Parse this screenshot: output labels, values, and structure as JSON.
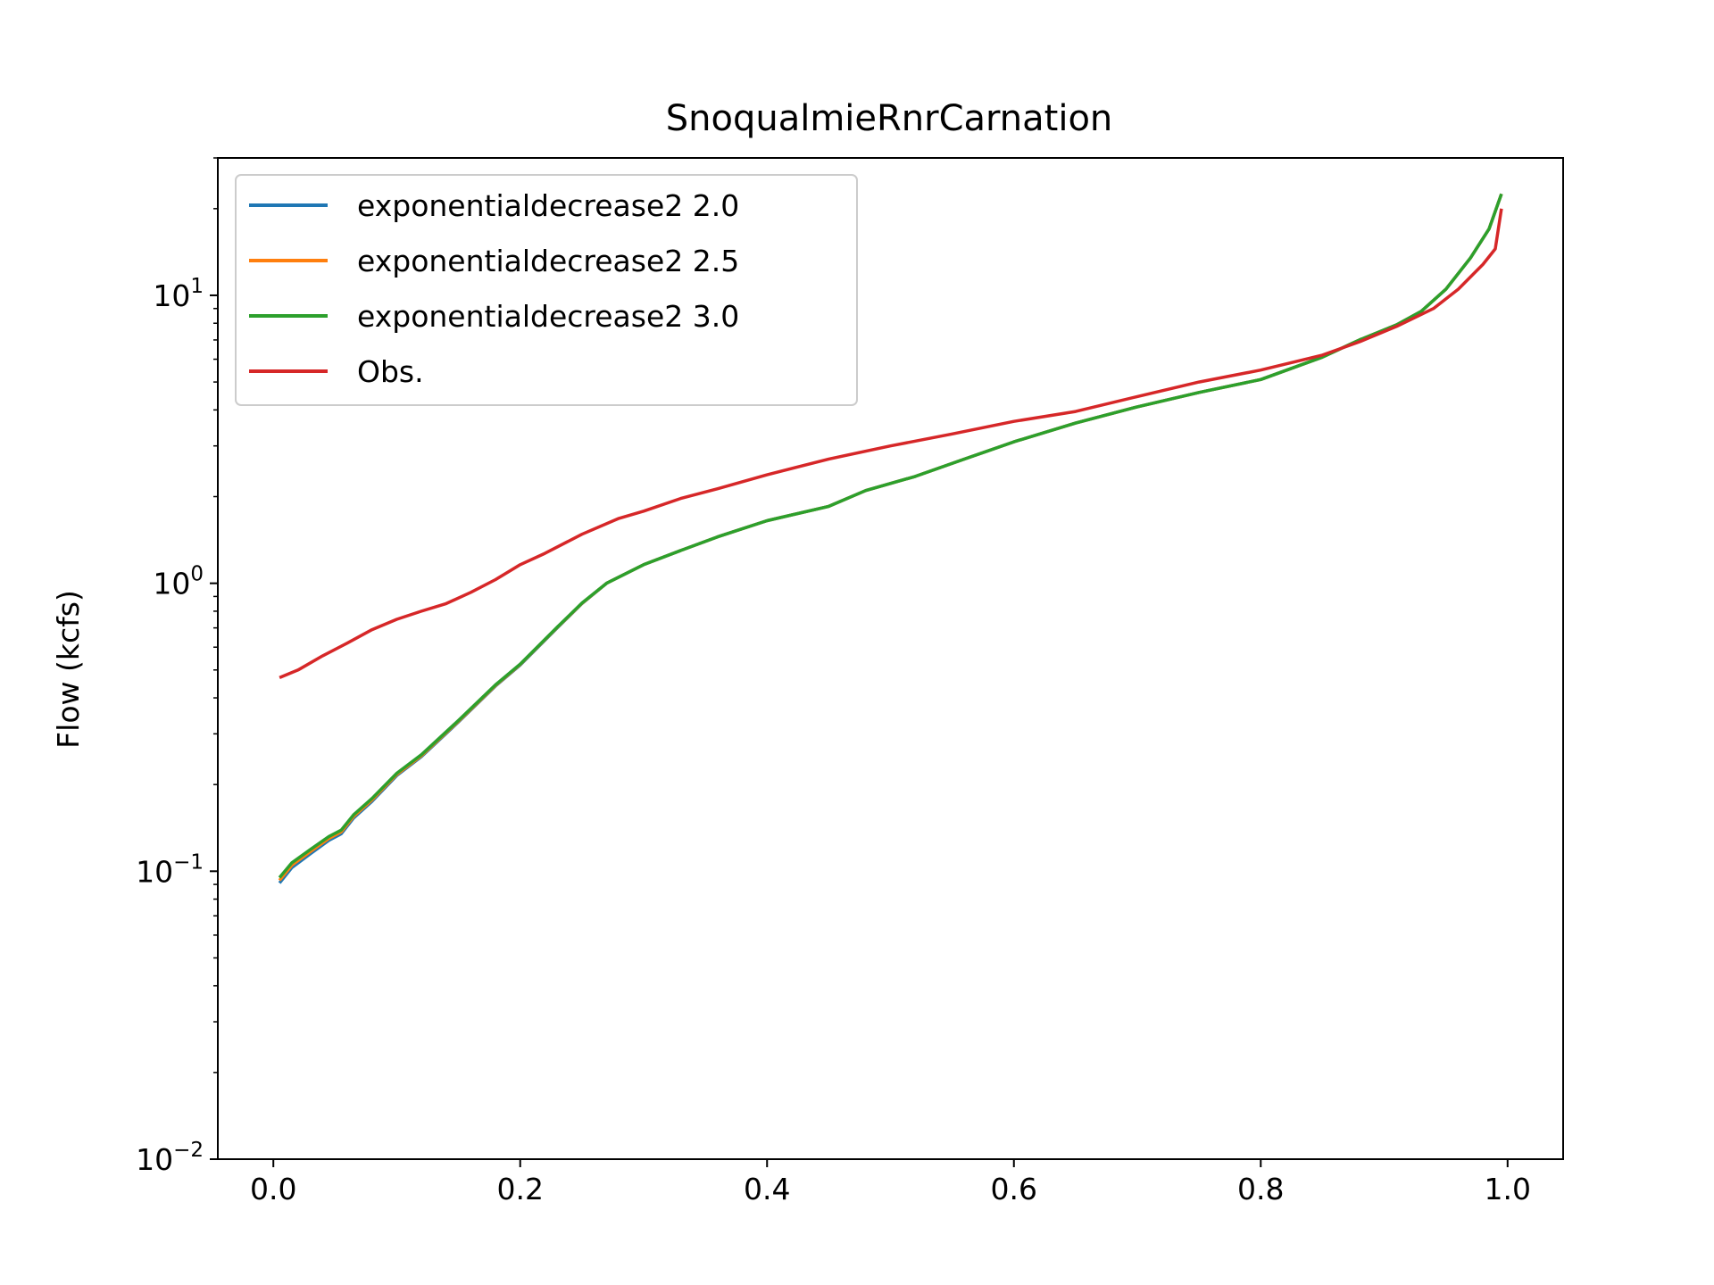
{
  "chart_data": {
    "type": "line",
    "title": "SnoqualmieRnrCarnation",
    "xlabel": "",
    "ylabel": "Flow (kcfs)",
    "xlim": [
      -0.045,
      1.045
    ],
    "ylim": [
      0.01,
      30
    ],
    "yscale": "log",
    "grid": false,
    "legend_position": "top-left",
    "x_ticks": [
      {
        "value": 0.0,
        "label": "0.0"
      },
      {
        "value": 0.2,
        "label": "0.2"
      },
      {
        "value": 0.4,
        "label": "0.4"
      },
      {
        "value": 0.6,
        "label": "0.6"
      },
      {
        "value": 0.8,
        "label": "0.8"
      },
      {
        "value": 1.0,
        "label": "1.0"
      }
    ],
    "y_ticks": [
      {
        "value": 0.01,
        "base": "10",
        "exp": "−2"
      },
      {
        "value": 0.1,
        "base": "10",
        "exp": "−1"
      },
      {
        "value": 1,
        "base": "10",
        "exp": "0"
      },
      {
        "value": 10,
        "base": "10",
        "exp": "1"
      }
    ],
    "series": [
      {
        "name": "exponentialdecrease2 2.0",
        "color": "#1f77b4",
        "x": [
          0.005,
          0.015,
          0.03,
          0.045,
          0.055,
          0.065,
          0.08,
          0.1,
          0.12,
          0.15,
          0.18,
          0.2,
          0.23,
          0.25,
          0.27,
          0.3,
          0.33,
          0.36,
          0.4,
          0.45,
          0.48,
          0.52,
          0.56,
          0.6,
          0.65,
          0.7,
          0.75,
          0.8,
          0.85,
          0.88,
          0.91,
          0.93,
          0.95,
          0.97,
          0.985,
          0.995
        ],
        "y": [
          0.091,
          0.103,
          0.115,
          0.128,
          0.135,
          0.153,
          0.175,
          0.215,
          0.25,
          0.33,
          0.44,
          0.52,
          0.7,
          0.85,
          1.0,
          1.16,
          1.3,
          1.45,
          1.65,
          1.85,
          2.1,
          2.35,
          2.7,
          3.1,
          3.6,
          4.1,
          4.6,
          5.1,
          6.1,
          7.0,
          7.9,
          8.8,
          10.5,
          13.5,
          17.0,
          22.5
        ]
      },
      {
        "name": "exponentialdecrease2 2.5",
        "color": "#ff7f0e",
        "x": [
          0.005,
          0.015,
          0.03,
          0.045,
          0.055,
          0.065,
          0.08,
          0.1,
          0.12,
          0.15,
          0.18,
          0.2,
          0.23,
          0.25,
          0.27,
          0.3,
          0.33,
          0.36,
          0.4,
          0.45,
          0.48,
          0.52,
          0.56,
          0.6,
          0.65,
          0.7,
          0.75,
          0.8,
          0.85,
          0.88,
          0.91,
          0.93,
          0.95,
          0.97,
          0.985,
          0.995
        ],
        "y": [
          0.093,
          0.105,
          0.117,
          0.13,
          0.137,
          0.155,
          0.177,
          0.217,
          0.252,
          0.332,
          0.442,
          0.522,
          0.702,
          0.852,
          1.0,
          1.16,
          1.3,
          1.45,
          1.65,
          1.85,
          2.1,
          2.35,
          2.7,
          3.1,
          3.6,
          4.1,
          4.6,
          5.1,
          6.1,
          7.0,
          7.9,
          8.8,
          10.5,
          13.5,
          17.0,
          22.5
        ]
      },
      {
        "name": "exponentialdecrease2 3.0",
        "color": "#2ca02c",
        "x": [
          0.005,
          0.015,
          0.03,
          0.045,
          0.055,
          0.065,
          0.08,
          0.1,
          0.12,
          0.15,
          0.18,
          0.2,
          0.23,
          0.25,
          0.27,
          0.3,
          0.33,
          0.36,
          0.4,
          0.45,
          0.48,
          0.52,
          0.56,
          0.6,
          0.65,
          0.7,
          0.75,
          0.8,
          0.85,
          0.88,
          0.91,
          0.93,
          0.95,
          0.97,
          0.985,
          0.995
        ],
        "y": [
          0.095,
          0.107,
          0.119,
          0.132,
          0.139,
          0.157,
          0.179,
          0.219,
          0.254,
          0.334,
          0.444,
          0.524,
          0.704,
          0.854,
          1.0,
          1.16,
          1.3,
          1.45,
          1.65,
          1.85,
          2.1,
          2.35,
          2.7,
          3.1,
          3.6,
          4.1,
          4.6,
          5.1,
          6.1,
          7.0,
          7.9,
          8.8,
          10.5,
          13.5,
          17.0,
          22.5
        ]
      },
      {
        "name": "Obs.",
        "color": "#d62728",
        "x": [
          0.005,
          0.02,
          0.04,
          0.06,
          0.08,
          0.1,
          0.12,
          0.14,
          0.16,
          0.18,
          0.2,
          0.22,
          0.25,
          0.28,
          0.3,
          0.33,
          0.36,
          0.4,
          0.45,
          0.5,
          0.55,
          0.6,
          0.65,
          0.7,
          0.75,
          0.8,
          0.85,
          0.88,
          0.91,
          0.94,
          0.96,
          0.98,
          0.99,
          0.995
        ],
        "y": [
          0.47,
          0.5,
          0.56,
          0.62,
          0.69,
          0.75,
          0.8,
          0.85,
          0.93,
          1.03,
          1.16,
          1.27,
          1.48,
          1.68,
          1.78,
          1.97,
          2.13,
          2.38,
          2.7,
          3.0,
          3.3,
          3.65,
          3.95,
          4.45,
          5.0,
          5.5,
          6.2,
          6.9,
          7.8,
          9.0,
          10.5,
          12.8,
          14.5,
          20.0
        ]
      }
    ]
  }
}
